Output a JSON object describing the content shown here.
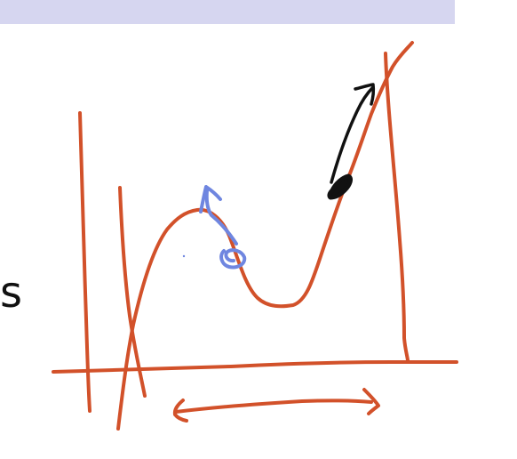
{
  "header": {
    "bar_color": "#d6d6f0"
  },
  "labels": {
    "left_letter": "s"
  },
  "colors": {
    "stroke_main": "#d2512a",
    "stroke_blue": "#6f86e0",
    "stroke_black": "#111111"
  }
}
